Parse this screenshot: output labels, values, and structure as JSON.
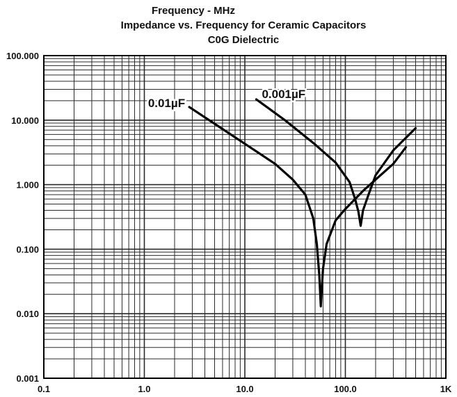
{
  "chart_data": {
    "type": "line",
    "title_lines": [
      "Frequency - MHz",
      "Impedance vs. Frequency for Ceramic Capacitors",
      "C0G Dielectric"
    ],
    "x_scale": "log",
    "y_scale": "log",
    "xlim": [
      0.1,
      1000
    ],
    "ylim": [
      0.001,
      100
    ],
    "x_tick_labels": [
      "0.1",
      "1.0",
      "10.0",
      "100.0",
      "1K"
    ],
    "x_tick_values": [
      0.1,
      1,
      10,
      100,
      1000
    ],
    "y_tick_labels": [
      "100.000",
      "10.000",
      "1.000",
      "0.100",
      "0.010",
      "0.001"
    ],
    "y_tick_values": [
      100,
      10,
      1,
      0.1,
      0.01,
      0.001
    ],
    "grid": true,
    "series": [
      {
        "name": "0.01µF",
        "points": [
          [
            2.8,
            16
          ],
          [
            5,
            8.8
          ],
          [
            10,
            4.3
          ],
          [
            20,
            2.1
          ],
          [
            30,
            1.2
          ],
          [
            40,
            0.7
          ],
          [
            48,
            0.3
          ],
          [
            52,
            0.12
          ],
          [
            55,
            0.04
          ],
          [
            57,
            0.013
          ],
          [
            60,
            0.05
          ],
          [
            65,
            0.12
          ],
          [
            80,
            0.28
          ],
          [
            100,
            0.42
          ],
          [
            150,
            0.8
          ],
          [
            200,
            1.2
          ],
          [
            300,
            2.1
          ],
          [
            400,
            3.8
          ]
        ]
      },
      {
        "name": "0.001µF",
        "points": [
          [
            13,
            21
          ],
          [
            25,
            10
          ],
          [
            50,
            4.2
          ],
          [
            80,
            2.2
          ],
          [
            110,
            1.1
          ],
          [
            125,
            0.6
          ],
          [
            135,
            0.38
          ],
          [
            142,
            0.23
          ],
          [
            150,
            0.4
          ],
          [
            170,
            0.7
          ],
          [
            200,
            1.4
          ],
          [
            300,
            3.4
          ],
          [
            500,
            7.5
          ]
        ]
      }
    ],
    "colors": {
      "line": "#000000",
      "grid": "#2a2a2a",
      "background": "#ffffff"
    }
  }
}
